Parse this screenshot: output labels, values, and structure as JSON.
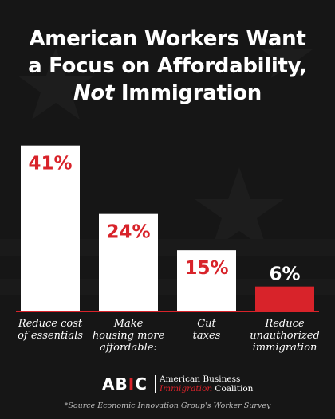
{
  "title": {
    "line1": "American Workers Want",
    "line2": "a Focus on Affordability,",
    "line3_emph": "Not",
    "line3_rest": " Immigration"
  },
  "chart_data": {
    "type": "bar",
    "categories": [
      [
        "Reduce cost",
        "of essentials"
      ],
      [
        "Make",
        "housing more",
        "affordable:"
      ],
      [
        "Cut",
        "taxes"
      ],
      [
        "Reduce",
        "unauthorized",
        "immigration"
      ]
    ],
    "values": [
      41,
      24,
      15,
      6
    ],
    "data_labels": [
      "41%",
      "24%",
      "15%",
      "6%"
    ],
    "ylim": [
      0,
      45
    ],
    "grid": false,
    "colors": {
      "bar_default": "#ffffff",
      "bar_highlight": "#d8232a",
      "label_on_white": "#d8232a",
      "label_on_red": "#ffffff",
      "baseline": "#d8232a"
    },
    "highlight_index": 3
  },
  "logo": {
    "mark": "AB",
    "mark_torch": "I",
    "mark_end": "C",
    "line1": "American Business",
    "line2_red": "Immigration",
    "line2_rest": " Coalition"
  },
  "source": "*Source Economic Innovation Group's Worker Survey"
}
